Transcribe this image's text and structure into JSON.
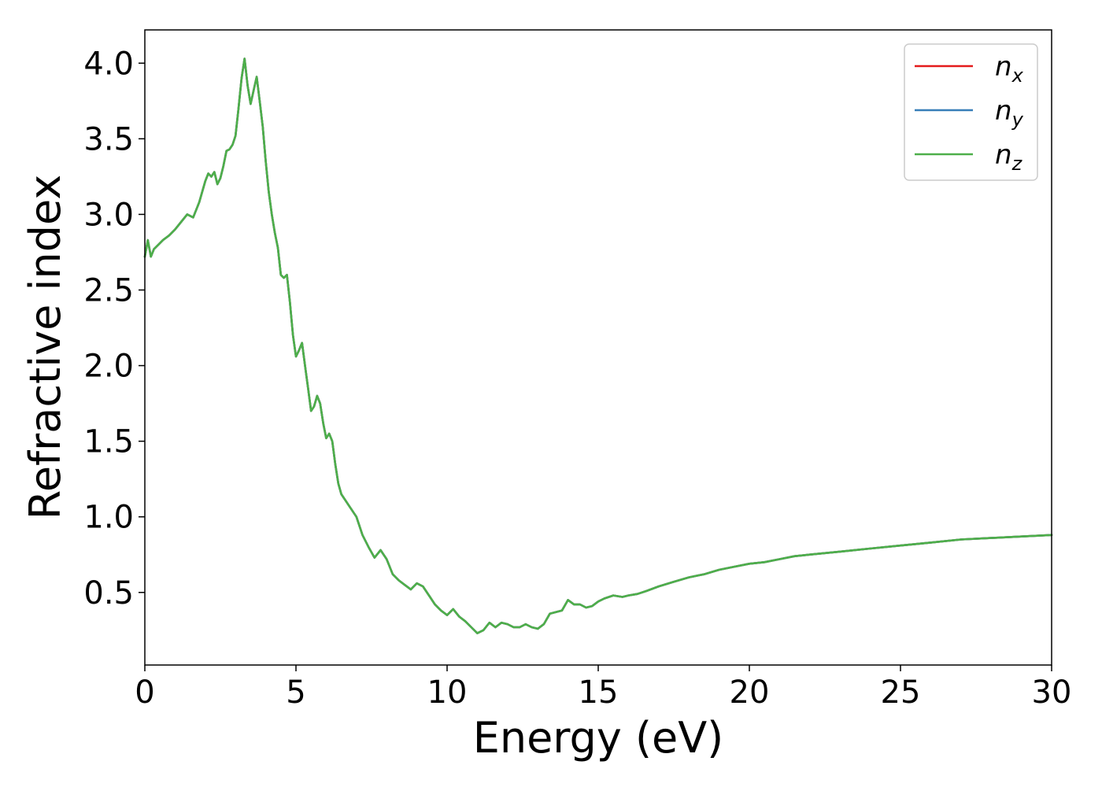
{
  "chart_data": {
    "type": "line",
    "title": "",
    "xlabel": "Energy (eV)",
    "ylabel": "Refractive index",
    "xlim": [
      0,
      30
    ],
    "ylim": [
      0.02,
      4.22
    ],
    "xticks": [
      0,
      5,
      10,
      15,
      20,
      25,
      30
    ],
    "xtick_labels": [
      "0",
      "5",
      "10",
      "15",
      "20",
      "25",
      "30"
    ],
    "yticks": [
      0.5,
      1.0,
      1.5,
      2.0,
      2.5,
      3.0,
      3.5,
      4.0
    ],
    "ytick_labels": [
      "0.5",
      "1.0",
      "1.5",
      "2.0",
      "2.5",
      "3.0",
      "3.5",
      "4.0"
    ],
    "grid": false,
    "legend_position": "top-right",
    "curve": {
      "x": [
        0,
        0.1,
        0.2,
        0.3,
        0.45,
        0.6,
        0.8,
        1.0,
        1.2,
        1.4,
        1.6,
        1.8,
        2.0,
        2.1,
        2.2,
        2.3,
        2.4,
        2.5,
        2.6,
        2.7,
        2.8,
        2.9,
        3.0,
        3.1,
        3.2,
        3.3,
        3.4,
        3.5,
        3.6,
        3.7,
        3.8,
        3.9,
        4.0,
        4.1,
        4.2,
        4.3,
        4.4,
        4.5,
        4.6,
        4.7,
        4.8,
        4.9,
        5.0,
        5.1,
        5.2,
        5.3,
        5.4,
        5.5,
        5.6,
        5.7,
        5.8,
        5.9,
        6.0,
        6.1,
        6.2,
        6.3,
        6.4,
        6.5,
        6.6,
        6.8,
        7.0,
        7.2,
        7.4,
        7.6,
        7.8,
        8.0,
        8.2,
        8.4,
        8.6,
        8.8,
        9.0,
        9.2,
        9.4,
        9.6,
        9.8,
        10.0,
        10.2,
        10.4,
        10.6,
        10.8,
        11.0,
        11.2,
        11.4,
        11.6,
        11.8,
        12.0,
        12.2,
        12.4,
        12.6,
        12.8,
        13.0,
        13.2,
        13.4,
        13.6,
        13.8,
        14.0,
        14.2,
        14.4,
        14.6,
        14.8,
        15.0,
        15.2,
        15.5,
        15.8,
        16.0,
        16.3,
        16.6,
        17.0,
        17.5,
        18.0,
        18.5,
        19.0,
        19.5,
        20.0,
        20.5,
        21.0,
        21.5,
        22.0,
        23.0,
        24.0,
        25.0,
        26.0,
        27.0,
        28.0,
        29.0,
        30.0
      ],
      "y": [
        2.72,
        2.83,
        2.72,
        2.77,
        2.8,
        2.83,
        2.86,
        2.9,
        2.95,
        3.0,
        2.98,
        3.08,
        3.22,
        3.27,
        3.25,
        3.28,
        3.2,
        3.24,
        3.32,
        3.42,
        3.43,
        3.46,
        3.52,
        3.7,
        3.9,
        4.03,
        3.85,
        3.73,
        3.82,
        3.91,
        3.75,
        3.58,
        3.35,
        3.15,
        3.0,
        2.88,
        2.78,
        2.6,
        2.58,
        2.6,
        2.42,
        2.2,
        2.06,
        2.1,
        2.15,
        2.0,
        1.85,
        1.7,
        1.73,
        1.8,
        1.75,
        1.62,
        1.52,
        1.55,
        1.5,
        1.35,
        1.22,
        1.15,
        1.12,
        1.06,
        1.0,
        0.88,
        0.8,
        0.73,
        0.78,
        0.72,
        0.62,
        0.58,
        0.55,
        0.52,
        0.56,
        0.54,
        0.48,
        0.42,
        0.38,
        0.35,
        0.39,
        0.34,
        0.31,
        0.27,
        0.23,
        0.25,
        0.3,
        0.27,
        0.3,
        0.29,
        0.27,
        0.27,
        0.29,
        0.27,
        0.26,
        0.29,
        0.36,
        0.37,
        0.38,
        0.45,
        0.42,
        0.42,
        0.4,
        0.41,
        0.44,
        0.46,
        0.48,
        0.47,
        0.48,
        0.49,
        0.51,
        0.54,
        0.57,
        0.6,
        0.62,
        0.65,
        0.67,
        0.69,
        0.7,
        0.72,
        0.74,
        0.75,
        0.77,
        0.79,
        0.81,
        0.83,
        0.85,
        0.86,
        0.87,
        0.88
      ]
    },
    "series": [
      {
        "name": "n_x",
        "label_main": "n",
        "label_sub": "x",
        "color": "#e41a1c"
      },
      {
        "name": "n_y",
        "label_main": "n",
        "label_sub": "y",
        "color": "#377eb8"
      },
      {
        "name": "n_z",
        "label_main": "n",
        "label_sub": "z",
        "color": "#4daf4a"
      }
    ]
  }
}
